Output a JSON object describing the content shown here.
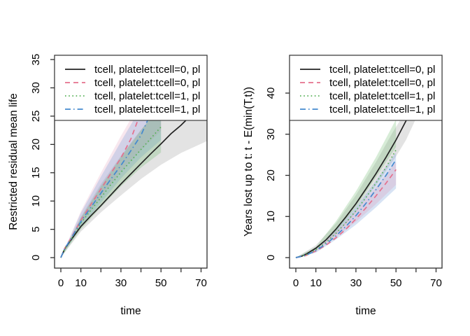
{
  "figure": {
    "background": "#ffffff"
  },
  "legend": {
    "entries": [
      {
        "label": "tcell, platelet:tcell=0, pl",
        "color": "#222222",
        "style": "solid"
      },
      {
        "label": "tcell, platelet:tcell=0, pl",
        "color": "#e5708d",
        "style": "dashed"
      },
      {
        "label": "tcell, platelet:tcell=1, pl",
        "color": "#55b055",
        "style": "dotted"
      },
      {
        "label": "tcell, platelet:tcell=1, pl",
        "color": "#4489cf",
        "style": "dashdot"
      }
    ]
  },
  "chart_data": [
    {
      "type": "line",
      "side": "left",
      "title": "",
      "xlabel": "time",
      "ylabel": "Restricted residual mean life",
      "xlim": [
        -3.14,
        72.98
      ],
      "ylim": [
        -1.85,
        35.75
      ],
      "x_ticks": [
        0,
        10,
        20,
        30,
        40,
        50,
        60,
        70
      ],
      "x_tick_labels": [
        "0",
        "10",
        "",
        "30",
        "",
        "50",
        "",
        "70"
      ],
      "y_ticks": [
        0,
        5,
        10,
        15,
        20,
        25,
        30,
        35
      ],
      "y_tick_labels": [
        "0",
        "5",
        "10",
        "15",
        "20",
        "25",
        "30",
        "35"
      ],
      "grid": false,
      "legend_position": "top",
      "series": [
        {
          "name": "tcell, platelet:tcell=0, pl",
          "color": "#222222",
          "style": "solid",
          "points": [
            [
              0,
              0
            ],
            [
              2,
              1.6
            ],
            [
              5,
              3.1
            ],
            [
              10,
              5.5
            ],
            [
              15,
              7.4
            ],
            [
              20,
              9.2
            ],
            [
              25,
              11.1
            ],
            [
              30,
              13
            ],
            [
              35,
              14.8
            ],
            [
              40,
              16.6
            ],
            [
              45,
              18.4
            ],
            [
              50,
              20.1
            ],
            [
              55,
              21.9
            ],
            [
              60,
              23.4
            ],
            [
              64,
              24.8
            ]
          ]
        },
        {
          "name": "tcell, platelet:tcell=0, pl",
          "color": "#e5708d",
          "style": "dashed",
          "points": [
            [
              0,
              0
            ],
            [
              2,
              1.7
            ],
            [
              5,
              3.4
            ],
            [
              10,
              6.6
            ],
            [
              15,
              9.4
            ],
            [
              20,
              12.1
            ],
            [
              25,
              14.9
            ],
            [
              30,
              17.6
            ],
            [
              35,
              21
            ],
            [
              39,
              24.8
            ]
          ]
        },
        {
          "name": "tcell, platelet:tcell=1, pl",
          "color": "#55b055",
          "style": "dotted",
          "points": [
            [
              0,
              0
            ],
            [
              2,
              1.6
            ],
            [
              5,
              3.2
            ],
            [
              10,
              6.1
            ],
            [
              15,
              8.4
            ],
            [
              20,
              10.6
            ],
            [
              25,
              12.9
            ],
            [
              30,
              15.1
            ],
            [
              35,
              17.1
            ],
            [
              40,
              19.1
            ],
            [
              45,
              21.1
            ],
            [
              50,
              23.1
            ]
          ]
        },
        {
          "name": "tcell, platelet:tcell=1, pl",
          "color": "#4489cf",
          "style": "dashdot",
          "points": [
            [
              0,
              0
            ],
            [
              2,
              1.65
            ],
            [
              5,
              3.3
            ],
            [
              10,
              6.35
            ],
            [
              15,
              8.9
            ],
            [
              20,
              11.4
            ],
            [
              25,
              13.9
            ],
            [
              30,
              16.3
            ],
            [
              35,
              18.9
            ],
            [
              40,
              21.6
            ],
            [
              44,
              24.8
            ]
          ]
        }
      ],
      "bands": [
        {
          "color": "#8c8c8c",
          "opacity": 0.24,
          "upper": [
            [
              0,
              0
            ],
            [
              10,
              7.2
            ],
            [
              20,
              13
            ],
            [
              30,
              18
            ],
            [
              40,
              22.6
            ],
            [
              50,
              26.6
            ],
            [
              60,
              30.5
            ],
            [
              73,
              35.5
            ]
          ],
          "lower": [
            [
              0,
              0
            ],
            [
              10,
              4.6
            ],
            [
              20,
              8
            ],
            [
              30,
              11
            ],
            [
              40,
              13.9
            ],
            [
              50,
              16.4
            ],
            [
              60,
              18.5
            ],
            [
              73,
              20.6
            ]
          ]
        },
        {
          "color": "#da7ba0",
          "opacity": 0.18,
          "upper": [
            [
              0,
              0
            ],
            [
              10,
              8.2
            ],
            [
              20,
              15
            ],
            [
              30,
              21.5
            ],
            [
              40,
              27.6
            ],
            [
              50,
              33.5
            ]
          ],
          "lower": [
            [
              0,
              0
            ],
            [
              10,
              5.9
            ],
            [
              20,
              10.7
            ],
            [
              30,
              15.2
            ],
            [
              40,
              19
            ],
            [
              50,
              22.4
            ]
          ]
        },
        {
          "color": "#6f9bd6",
          "opacity": 0.28,
          "upper": [
            [
              0,
              0
            ],
            [
              10,
              7.9
            ],
            [
              20,
              14.3
            ],
            [
              30,
              20.5
            ],
            [
              40,
              26.5
            ],
            [
              50,
              32
            ]
          ],
          "lower": [
            [
              0,
              0
            ],
            [
              10,
              5.4
            ],
            [
              20,
              9.7
            ],
            [
              30,
              14
            ],
            [
              40,
              17.7
            ],
            [
              50,
              20.8
            ]
          ]
        },
        {
          "color": "#63b763",
          "opacity": 0.26,
          "upper": [
            [
              0,
              0
            ],
            [
              10,
              7
            ],
            [
              20,
              12.6
            ],
            [
              30,
              17.8
            ],
            [
              40,
              22.5
            ],
            [
              50,
              27
            ]
          ],
          "lower": [
            [
              0,
              0
            ],
            [
              10,
              5
            ],
            [
              20,
              8.9
            ],
            [
              30,
              12.6
            ],
            [
              40,
              15.9
            ],
            [
              50,
              18.6
            ]
          ]
        }
      ]
    },
    {
      "type": "line",
      "side": "right",
      "title": "",
      "xlabel": "time",
      "ylabel": "Years lost up to t: t - E(min(T,t))",
      "xlim": [
        -3.14,
        72.98
      ],
      "ylim": [
        -2.55,
        49.19
      ],
      "x_ticks": [
        0,
        10,
        20,
        30,
        40,
        50,
        60,
        70
      ],
      "x_tick_labels": [
        "0",
        "10",
        "",
        "30",
        "",
        "50",
        "",
        "70"
      ],
      "y_ticks": [
        0,
        10,
        20,
        30,
        40
      ],
      "y_tick_labels": [
        "0",
        "10",
        "20",
        "30",
        "40"
      ],
      "grid": false,
      "legend_position": "top",
      "series": [
        {
          "name": "tcell, platelet:tcell=0, pl",
          "color": "#222222",
          "style": "solid",
          "points": [
            [
              0,
              0
            ],
            [
              3,
              0.35
            ],
            [
              5,
              0.8
            ],
            [
              10,
              2.3
            ],
            [
              15,
              4.3
            ],
            [
              20,
              6.9
            ],
            [
              25,
              9.9
            ],
            [
              30,
              13.1
            ],
            [
              35,
              16.7
            ],
            [
              40,
              20.4
            ],
            [
              45,
              24.4
            ],
            [
              50,
              28.6
            ],
            [
              56,
              34.2
            ]
          ]
        },
        {
          "name": "tcell, platelet:tcell=0, pl",
          "color": "#e5708d",
          "style": "dashed",
          "points": [
            [
              0,
              0
            ],
            [
              5,
              0.5
            ],
            [
              10,
              1.6
            ],
            [
              15,
              3
            ],
            [
              20,
              4.8
            ],
            [
              25,
              6.9
            ],
            [
              30,
              9.4
            ],
            [
              35,
              12.1
            ],
            [
              40,
              15
            ],
            [
              45,
              18.1
            ],
            [
              50,
              21.4
            ]
          ]
        },
        {
          "name": "tcell, platelet:tcell=1, pl",
          "color": "#55b055",
          "style": "dotted",
          "points": [
            [
              0,
              0
            ],
            [
              5,
              0.65
            ],
            [
              10,
              1.9
            ],
            [
              15,
              3.7
            ],
            [
              20,
              5.9
            ],
            [
              25,
              8.5
            ],
            [
              30,
              11.4
            ],
            [
              35,
              14.6
            ],
            [
              40,
              18.1
            ],
            [
              45,
              21.9
            ],
            [
              50,
              26.2
            ]
          ]
        },
        {
          "name": "tcell, platelet:tcell=1, pl",
          "color": "#4489cf",
          "style": "dashdot",
          "points": [
            [
              0,
              0
            ],
            [
              5,
              0.55
            ],
            [
              10,
              1.7
            ],
            [
              15,
              3.3
            ],
            [
              20,
              5.3
            ],
            [
              25,
              7.6
            ],
            [
              30,
              10.2
            ],
            [
              35,
              13.2
            ],
            [
              40,
              16.5
            ],
            [
              45,
              20
            ],
            [
              50,
              23.8
            ]
          ]
        }
      ],
      "bands": [
        {
          "color": "#8c8c8c",
          "opacity": 0.24,
          "upper": [
            [
              0,
              0
            ],
            [
              10,
              3
            ],
            [
              20,
              8.3
            ],
            [
              30,
              15.2
            ],
            [
              40,
              23.2
            ],
            [
              48,
              30.2
            ],
            [
              56,
              36.5
            ]
          ],
          "lower": [
            [
              0,
              0
            ],
            [
              10,
              1.8
            ],
            [
              20,
              5.6
            ],
            [
              30,
              11
            ],
            [
              40,
              17.5
            ],
            [
              50,
              24.6
            ],
            [
              55,
              28.6
            ],
            [
              60,
              33.8
            ]
          ]
        },
        {
          "color": "#6f9bd6",
          "opacity": 0.28,
          "upper": [
            [
              0,
              0
            ],
            [
              10,
              2.2
            ],
            [
              20,
              6.7
            ],
            [
              30,
              12.3
            ],
            [
              40,
              18.7
            ],
            [
              50,
              25.6
            ]
          ],
          "lower": [
            [
              0,
              0
            ],
            [
              10,
              1.2
            ],
            [
              20,
              4.4
            ],
            [
              30,
              8
            ],
            [
              40,
              12.2
            ],
            [
              50,
              16.8
            ]
          ]
        },
        {
          "color": "#da7ba0",
          "opacity": 0.2,
          "upper": [
            [
              0,
              0
            ],
            [
              10,
              2.1
            ],
            [
              20,
              6.3
            ],
            [
              30,
              11.3
            ],
            [
              40,
              17.1
            ],
            [
              50,
              23.3
            ]
          ],
          "lower": [
            [
              0,
              0
            ],
            [
              10,
              1.4
            ],
            [
              20,
              4.9
            ],
            [
              30,
              8.7
            ],
            [
              40,
              13
            ],
            [
              50,
              17.7
            ]
          ]
        },
        {
          "color": "#63b763",
          "opacity": 0.26,
          "upper": [
            [
              0,
              0
            ],
            [
              10,
              2.6
            ],
            [
              20,
              8.8
            ],
            [
              30,
              16.1
            ],
            [
              40,
              24.4
            ],
            [
              50,
              33.6
            ]
          ],
          "lower": [
            [
              0,
              0
            ],
            [
              10,
              1.9
            ],
            [
              20,
              6.3
            ],
            [
              30,
              12.3
            ],
            [
              40,
              19.5
            ],
            [
              50,
              26.9
            ]
          ]
        }
      ]
    }
  ]
}
